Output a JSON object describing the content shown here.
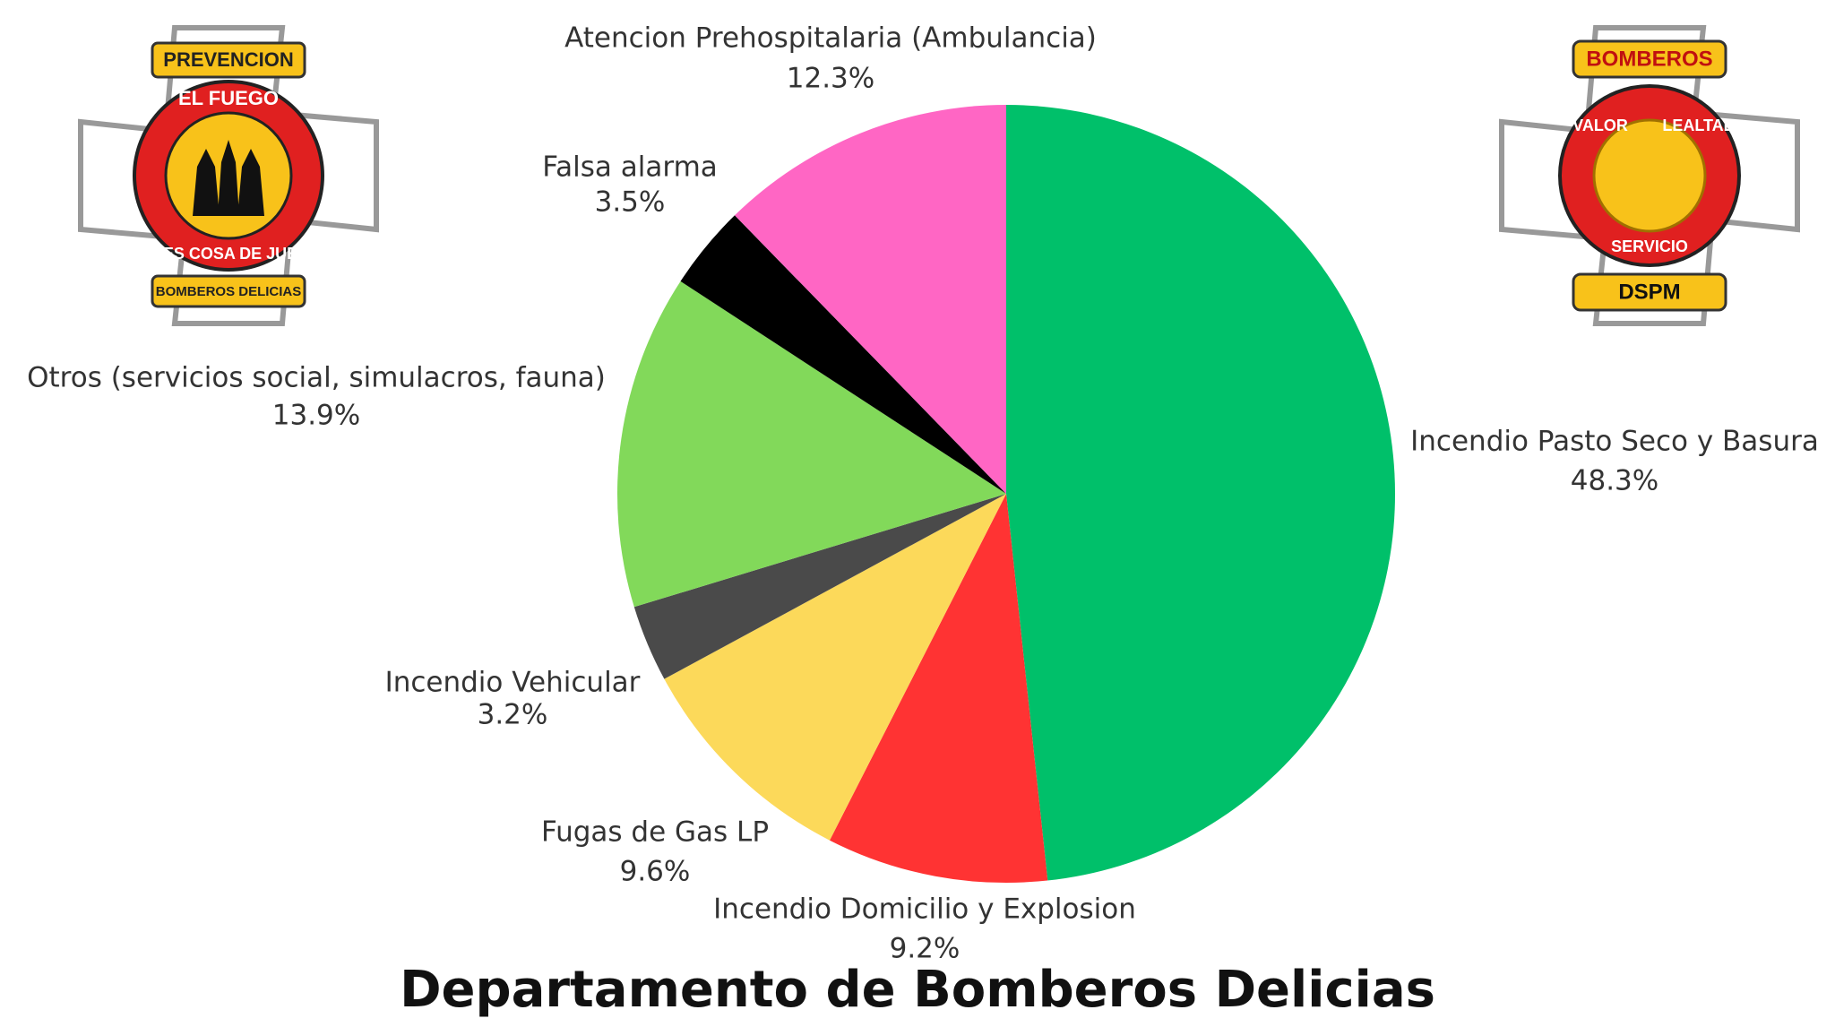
{
  "chart_data": {
    "type": "pie",
    "title": "Departamento de Bomberos Delicias",
    "categories": [
      "Incendio Pasto Seco y Basura",
      "Incendio Domicilio y Explosion",
      "Fugas de Gas LP",
      "Incendio Vehicular",
      "Otros (servicios social, simulacros, fauna)",
      "Falsa alarma",
      "Atencion Prehospitalaria (Ambulancia)"
    ],
    "values": [
      48.3,
      9.2,
      9.6,
      3.2,
      13.9,
      3.5,
      12.3
    ],
    "value_labels": [
      "48.3%",
      "9.2%",
      "9.6%",
      "3.2%",
      "13.9%",
      "3.5%",
      "12.3%"
    ],
    "colors": [
      "#00c06a",
      "#ff3333",
      "#fcd95a",
      "#4a4a4a",
      "#82d95a",
      "#000000",
      "#ff66c4"
    ]
  },
  "logos": {
    "left": {
      "top": "PREVENCION",
      "ring_top": "EL FUEGO",
      "ring_bottom": "NO ES COSA DE JUEGO",
      "bottom": "BOMBEROS DELICIAS"
    },
    "right": {
      "top": "BOMBEROS",
      "ring_left": "VALOR",
      "ring_right": "LEALTAD",
      "ring_bottom": "SERVICIO",
      "bottom": "DSPM"
    }
  }
}
